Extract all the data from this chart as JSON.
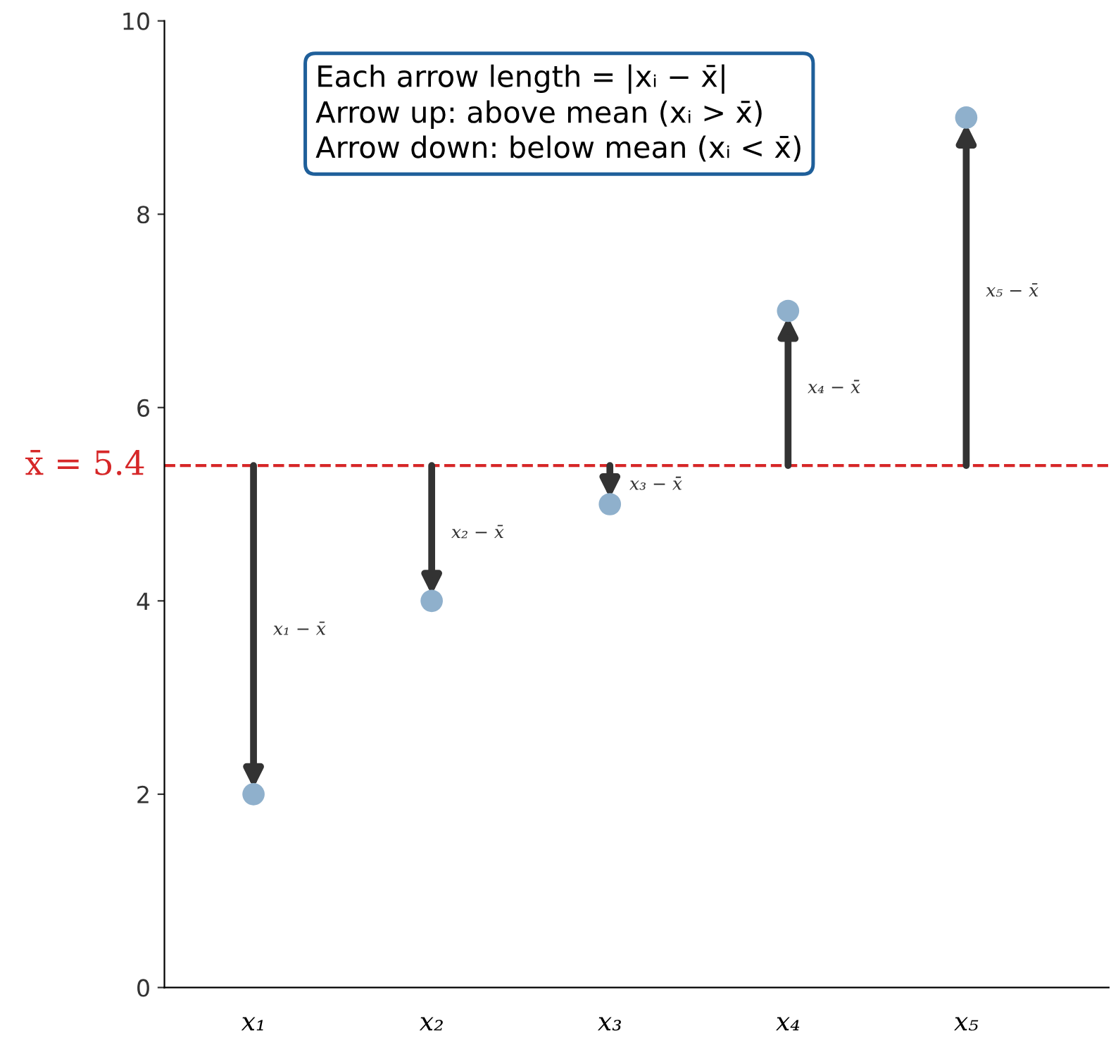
{
  "chart_data": {
    "type": "scatter",
    "categories": [
      "x₁",
      "x₂",
      "x₃",
      "x₄",
      "x₅"
    ],
    "values": [
      2,
      4,
      5,
      7,
      9
    ],
    "color": "#8fb0cc",
    "ylim": [
      0,
      10
    ],
    "yticks": [
      0,
      2,
      4,
      6,
      8,
      10
    ],
    "grid": false,
    "marker": "circle",
    "ref_lines": [
      {
        "axis": "y",
        "value": 5.4,
        "label": "x̄ = 5.4",
        "color": "#d62728",
        "line_style": "dashed"
      }
    ],
    "annotations": [
      "Each arrow length = |xᵢ − x̄|",
      "Arrow up: above mean (xᵢ > x̄)",
      "Arrow down: below mean (xᵢ < x̄)",
      "x₁ − x̄",
      "x₂ − x̄",
      "x₃ − x̄",
      "x₄ − x̄",
      "x₅ − x̄"
    ]
  }
}
